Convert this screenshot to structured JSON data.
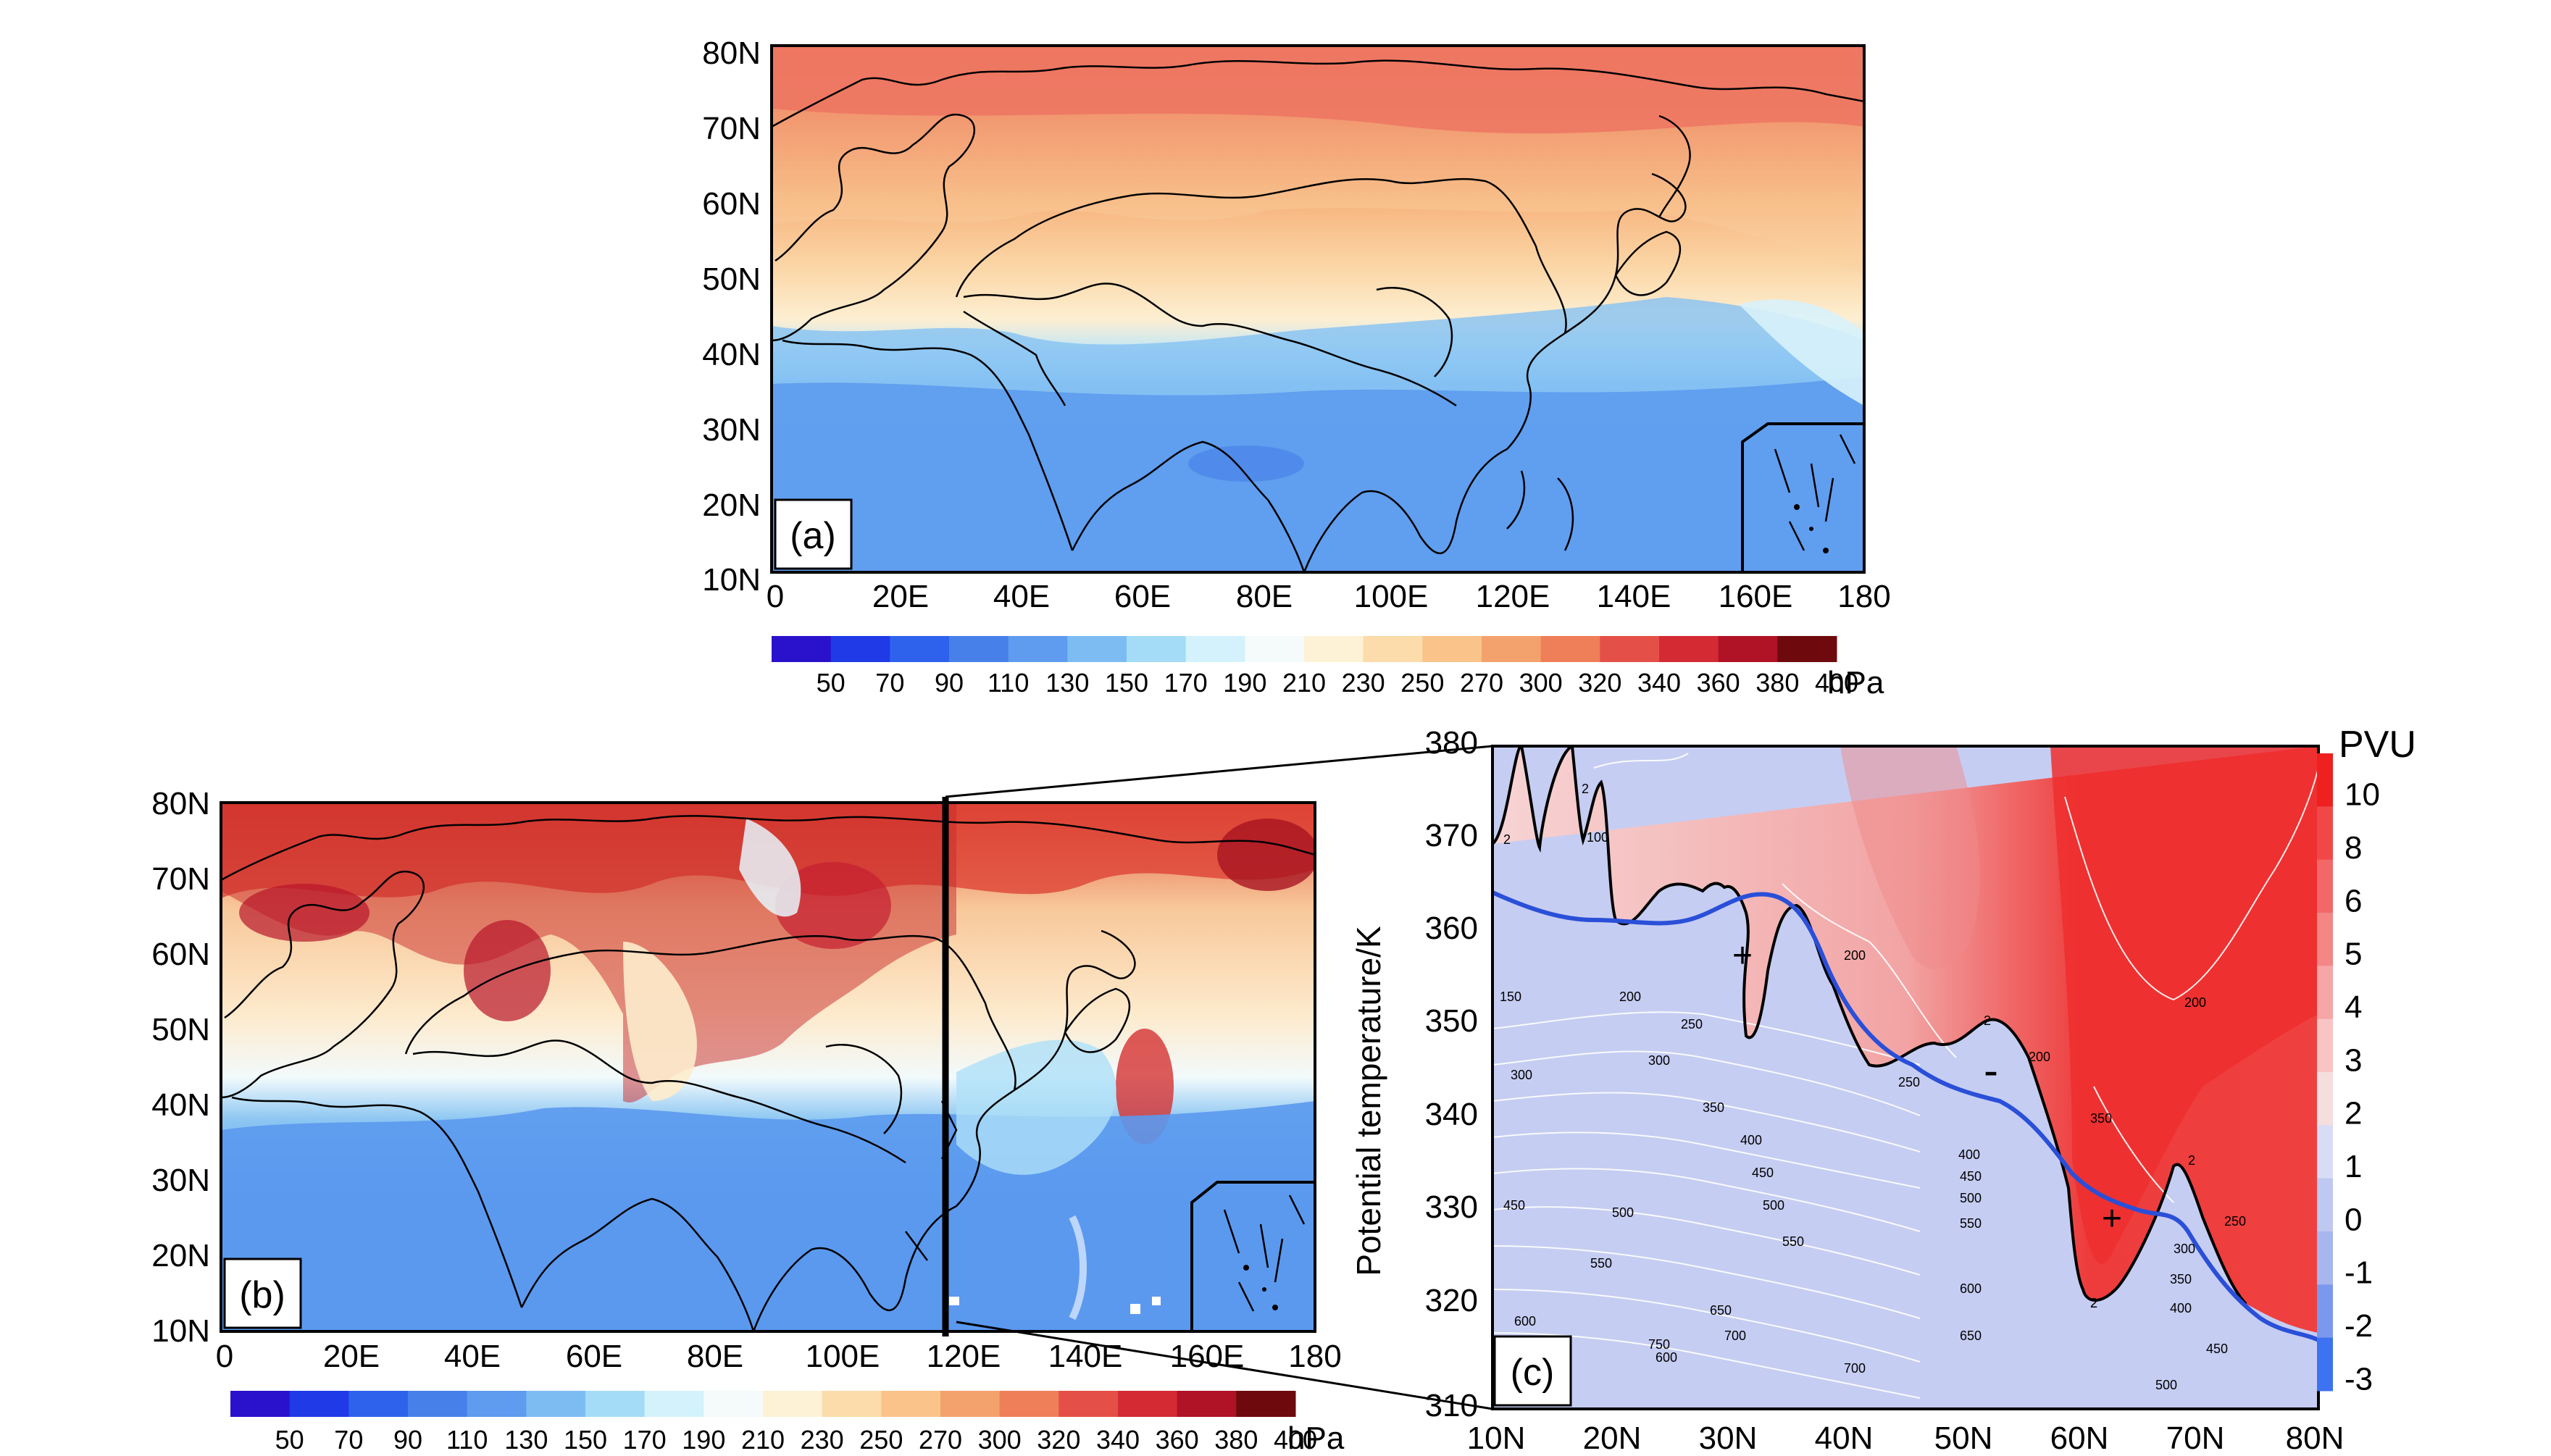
{
  "panel_a": {
    "label": "(a)",
    "lat_ticks": [
      "80N",
      "70N",
      "60N",
      "50N",
      "40N",
      "30N",
      "20N",
      "10N"
    ],
    "lon_ticks": [
      "0",
      "20E",
      "40E",
      "60E",
      "80E",
      "100E",
      "120E",
      "140E",
      "160E",
      "180"
    ],
    "colorbar_ticks": [
      "50",
      "70",
      "90",
      "110",
      "130",
      "150",
      "170",
      "190",
      "210",
      "230",
      "250",
      "270",
      "300",
      "320",
      "340",
      "360",
      "380",
      "400"
    ],
    "unit": "hPa"
  },
  "panel_b": {
    "label": "(b)",
    "lat_ticks": [
      "80N",
      "70N",
      "60N",
      "50N",
      "40N",
      "30N",
      "20N",
      "10N"
    ],
    "lon_ticks": [
      "0",
      "20E",
      "40E",
      "60E",
      "80E",
      "100E",
      "120E",
      "140E",
      "160E",
      "180"
    ],
    "colorbar_ticks": [
      "50",
      "70",
      "90",
      "110",
      "130",
      "150",
      "170",
      "190",
      "210",
      "230",
      "250",
      "270",
      "300",
      "320",
      "340",
      "360",
      "380",
      "400"
    ],
    "unit": "hPa"
  },
  "panel_c": {
    "label": "(c)",
    "ylabel": "Potential temperature/K",
    "y_ticks": [
      "380",
      "370",
      "360",
      "350",
      "340",
      "330",
      "320",
      "310"
    ],
    "x_ticks": [
      "10N",
      "20N",
      "30N",
      "40N",
      "50N",
      "60N",
      "70N",
      "80N"
    ],
    "pvu_title": "PVU",
    "pvu_ticks": [
      "10",
      "8",
      "6",
      "5",
      "4",
      "3",
      "2",
      "1",
      "0",
      "-1",
      "-2",
      "-3"
    ],
    "signs": [
      "+",
      "-",
      "+"
    ],
    "contour_labels": [
      "100",
      "2",
      "2",
      "150",
      "200",
      "250",
      "300",
      "300",
      "350",
      "400",
      "450",
      "450",
      "500",
      "500",
      "550",
      "550",
      "600",
      "650",
      "700",
      "750",
      "600",
      "200",
      "200",
      "2",
      "250",
      "350",
      "400",
      "450",
      "500",
      "550",
      "600",
      "650",
      "700",
      "250",
      "2",
      "300",
      "350",
      "400",
      "450",
      "500",
      "200",
      "2",
      "2"
    ]
  },
  "colors": {
    "colorbar": [
      "#2a12cc",
      "#1f3ae6",
      "#2f62ec",
      "#4880ea",
      "#5f9bee",
      "#7dbcf2",
      "#a4dcf7",
      "#d3f2fb",
      "#f4fbfa",
      "#fdf1d6",
      "#fbdcaa",
      "#f9c38a",
      "#f4a26d",
      "#ee7f59",
      "#e45047",
      "#d42a33",
      "#b01226",
      "#6e0a0d"
    ],
    "pvu": [
      "#ee2020",
      "#f04848",
      "#f26868",
      "#f48686",
      "#f6a6a6",
      "#f8c4c4",
      "#f4dede",
      "#d8dcf4",
      "#bfc8f0",
      "#a8b6ee",
      "#7a98ee",
      "#3d72f0"
    ],
    "trop_line": "#2a4fd8"
  }
}
